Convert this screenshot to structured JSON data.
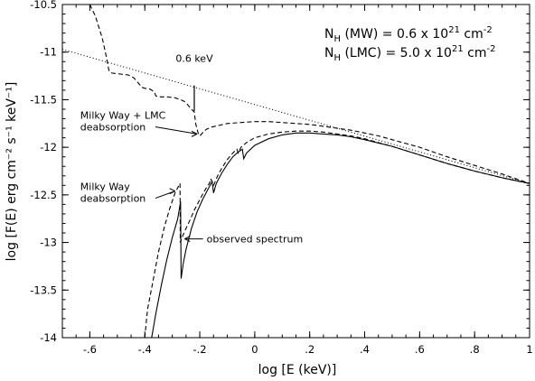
{
  "chart_data": {
    "type": "line",
    "title": "",
    "xlabel": "log [E (keV)]",
    "ylabel": "log [F(E) erg cm⁻² s⁻¹ keV⁻¹]",
    "xlim": [
      -0.7,
      1.0
    ],
    "ylim": [
      -14,
      -10.5
    ],
    "x_ticks": [
      -0.6,
      -0.4,
      -0.2,
      0,
      0.2,
      0.4,
      0.6,
      0.8,
      1.0
    ],
    "x_tick_labels": [
      "-.6",
      "-.4",
      "-.2",
      "0",
      ".2",
      ".4",
      ".6",
      ".8",
      "1"
    ],
    "y_ticks": [
      -14,
      -13.5,
      -13,
      -12.5,
      -12,
      -11.5,
      -11,
      -10.5
    ],
    "y_tick_labels": [
      "-14",
      "-13.5",
      "-13",
      "-12.5",
      "-12",
      "-11.5",
      "-11",
      "-10.5"
    ],
    "grid": false,
    "nh_lines": [
      {
        "label": "N",
        "sub": "H",
        "paren": " (MW) = 0.6 x 10",
        "exp": "21",
        "unit": " cm",
        "unit_exp": "-2"
      },
      {
        "label": "N",
        "sub": "H",
        "paren": " (LMC) = 5.0 x 10",
        "exp": "21",
        "unit": " cm",
        "unit_exp": "-2"
      }
    ],
    "series": [
      {
        "style": "dotted",
        "x": [
          -0.7,
          1.0
        ],
        "y": [
          -10.97,
          -12.38
        ]
      },
      {
        "style": "dashed",
        "x": [
          -0.6,
          -0.58,
          -0.555,
          -0.54,
          -0.53,
          -0.52,
          -0.49,
          -0.46,
          -0.44,
          -0.425,
          -0.41,
          -0.4,
          -0.38,
          -0.365,
          -0.36,
          -0.35,
          -0.32,
          -0.29,
          -0.27,
          -0.255,
          -0.245,
          -0.23,
          -0.22,
          -0.215,
          -0.205,
          -0.2,
          -0.19,
          -0.185,
          -0.175,
          -0.16,
          -0.13,
          -0.1,
          -0.05,
          0.0,
          0.05,
          0.1,
          0.15,
          0.2,
          0.25,
          0.3,
          0.35,
          0.4,
          0.45,
          0.5,
          0.55,
          0.6,
          0.7,
          0.8,
          0.9,
          1.0
        ],
        "y": [
          -10.5,
          -10.62,
          -10.85,
          -11.05,
          -11.2,
          -11.22,
          -11.23,
          -11.24,
          -11.27,
          -11.32,
          -11.37,
          -11.38,
          -11.39,
          -11.42,
          -11.46,
          -11.47,
          -11.47,
          -11.48,
          -11.5,
          -11.52,
          -11.55,
          -11.6,
          -11.63,
          -11.75,
          -11.86,
          -11.88,
          -11.85,
          -11.83,
          -11.81,
          -11.79,
          -11.77,
          -11.75,
          -11.74,
          -11.73,
          -11.73,
          -11.74,
          -11.75,
          -11.76,
          -11.78,
          -11.8,
          -11.82,
          -11.85,
          -11.88,
          -11.92,
          -11.96,
          -12.0,
          -12.1,
          -12.19,
          -12.28,
          -12.38
        ]
      },
      {
        "style": "dashed",
        "x": [
          -0.4,
          -0.39,
          -0.37,
          -0.35,
          -0.33,
          -0.31,
          -0.29,
          -0.272,
          -0.271,
          -0.262,
          -0.25,
          -0.235,
          -0.22,
          -0.2,
          -0.185,
          -0.175,
          -0.165,
          -0.16,
          -0.15,
          -0.135,
          -0.12,
          -0.1,
          -0.08,
          -0.065,
          -0.06,
          -0.05,
          -0.03,
          0.0,
          0.05,
          0.1,
          0.15,
          0.2,
          0.25,
          0.3,
          0.35,
          0.4,
          0.5,
          0.6,
          0.7,
          0.8,
          0.9,
          1.0
        ],
        "y": [
          -14.0,
          -13.7,
          -13.4,
          -13.1,
          -12.85,
          -12.65,
          -12.48,
          -12.38,
          -13.0,
          -12.93,
          -12.85,
          -12.76,
          -12.66,
          -12.55,
          -12.47,
          -12.42,
          -12.38,
          -12.33,
          -12.4,
          -12.3,
          -12.22,
          -12.13,
          -12.06,
          -12.02,
          -12.06,
          -12.0,
          -11.95,
          -11.9,
          -11.86,
          -11.84,
          -11.83,
          -11.83,
          -11.84,
          -11.86,
          -11.88,
          -11.91,
          -11.99,
          -12.08,
          -12.17,
          -12.25,
          -12.32,
          -12.38
        ]
      },
      {
        "style": "solid",
        "x": [
          -0.375,
          -0.36,
          -0.34,
          -0.32,
          -0.3,
          -0.28,
          -0.27,
          -0.268,
          -0.26,
          -0.25,
          -0.23,
          -0.21,
          -0.19,
          -0.17,
          -0.155,
          -0.15,
          -0.14,
          -0.12,
          -0.1,
          -0.08,
          -0.06,
          -0.045,
          -0.04,
          -0.03,
          0.0,
          0.05,
          0.1,
          0.15,
          0.2,
          0.25,
          0.3,
          0.35,
          0.4,
          0.5,
          0.6,
          0.7,
          0.8,
          0.9,
          1.0
        ],
        "y": [
          -14.0,
          -13.75,
          -13.45,
          -13.18,
          -12.95,
          -12.75,
          -12.57,
          -13.38,
          -13.22,
          -13.07,
          -12.85,
          -12.68,
          -12.55,
          -12.44,
          -12.36,
          -12.48,
          -12.38,
          -12.27,
          -12.18,
          -12.1,
          -12.05,
          -12.02,
          -12.12,
          -12.06,
          -11.98,
          -11.91,
          -11.87,
          -11.85,
          -11.85,
          -11.86,
          -11.87,
          -11.89,
          -11.92,
          -11.99,
          -12.08,
          -12.17,
          -12.25,
          -12.32,
          -12.38
        ]
      }
    ],
    "annotations": [
      {
        "text": "0.6 keV",
        "x": -0.22,
        "y": -11.1,
        "line_x": -0.22,
        "line_y": [
          -11.35,
          -11.62
        ]
      },
      {
        "text_lines": [
          "Milky Way + LMC",
          "deabsorption"
        ],
        "x": -0.635,
        "y": -11.7,
        "arrow_to_x": -0.21,
        "arrow_to_y": -11.86
      },
      {
        "text_lines": [
          "Milky Way",
          "deabsorption"
        ],
        "x": -0.635,
        "y": -12.45,
        "arrow_to_x": -0.29,
        "arrow_to_y": -12.46
      },
      {
        "text_lines": [
          "observed spectrum"
        ],
        "x": -0.175,
        "y": -13.0,
        "arrow_to_x": -0.255,
        "arrow_to_y": -13.0
      }
    ]
  }
}
